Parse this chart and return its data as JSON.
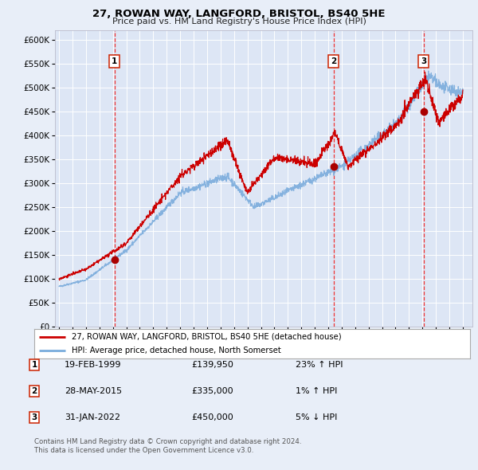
{
  "title1": "27, ROWAN WAY, LANGFORD, BRISTOL, BS40 5HE",
  "title2": "Price paid vs. HM Land Registry's House Price Index (HPI)",
  "background_color": "#e8eef8",
  "plot_bg_color": "#dde6f5",
  "grid_color": "#ffffff",
  "red_line_color": "#cc0000",
  "blue_line_color": "#7aacdc",
  "sale_marker_color": "#aa0000",
  "dashed_line_color": "#ee3333",
  "sale_yf": [
    1999.13,
    2015.41,
    2022.08
  ],
  "sale_prices": [
    139950,
    335000,
    450000
  ],
  "sale_labels": [
    "1",
    "2",
    "3"
  ],
  "legend_line1": "27, ROWAN WAY, LANGFORD, BRISTOL, BS40 5HE (detached house)",
  "legend_line2": "HPI: Average price, detached house, North Somerset",
  "table_rows": [
    {
      "num": "1",
      "date": "19-FEB-1999",
      "price": "£139,950",
      "pct": "23% ↑ HPI"
    },
    {
      "num": "2",
      "date": "28-MAY-2015",
      "price": "£335,000",
      "pct": "1% ↑ HPI"
    },
    {
      "num": "3",
      "date": "31-JAN-2022",
      "price": "£450,000",
      "pct": "5% ↓ HPI"
    }
  ],
  "footnote1": "Contains HM Land Registry data © Crown copyright and database right 2024.",
  "footnote2": "This data is licensed under the Open Government Licence v3.0.",
  "ylim": [
    0,
    620000
  ],
  "xlim": [
    1994.7,
    2025.7
  ],
  "yticks": [
    0,
    50000,
    100000,
    150000,
    200000,
    250000,
    300000,
    350000,
    400000,
    450000,
    500000,
    550000,
    600000
  ]
}
